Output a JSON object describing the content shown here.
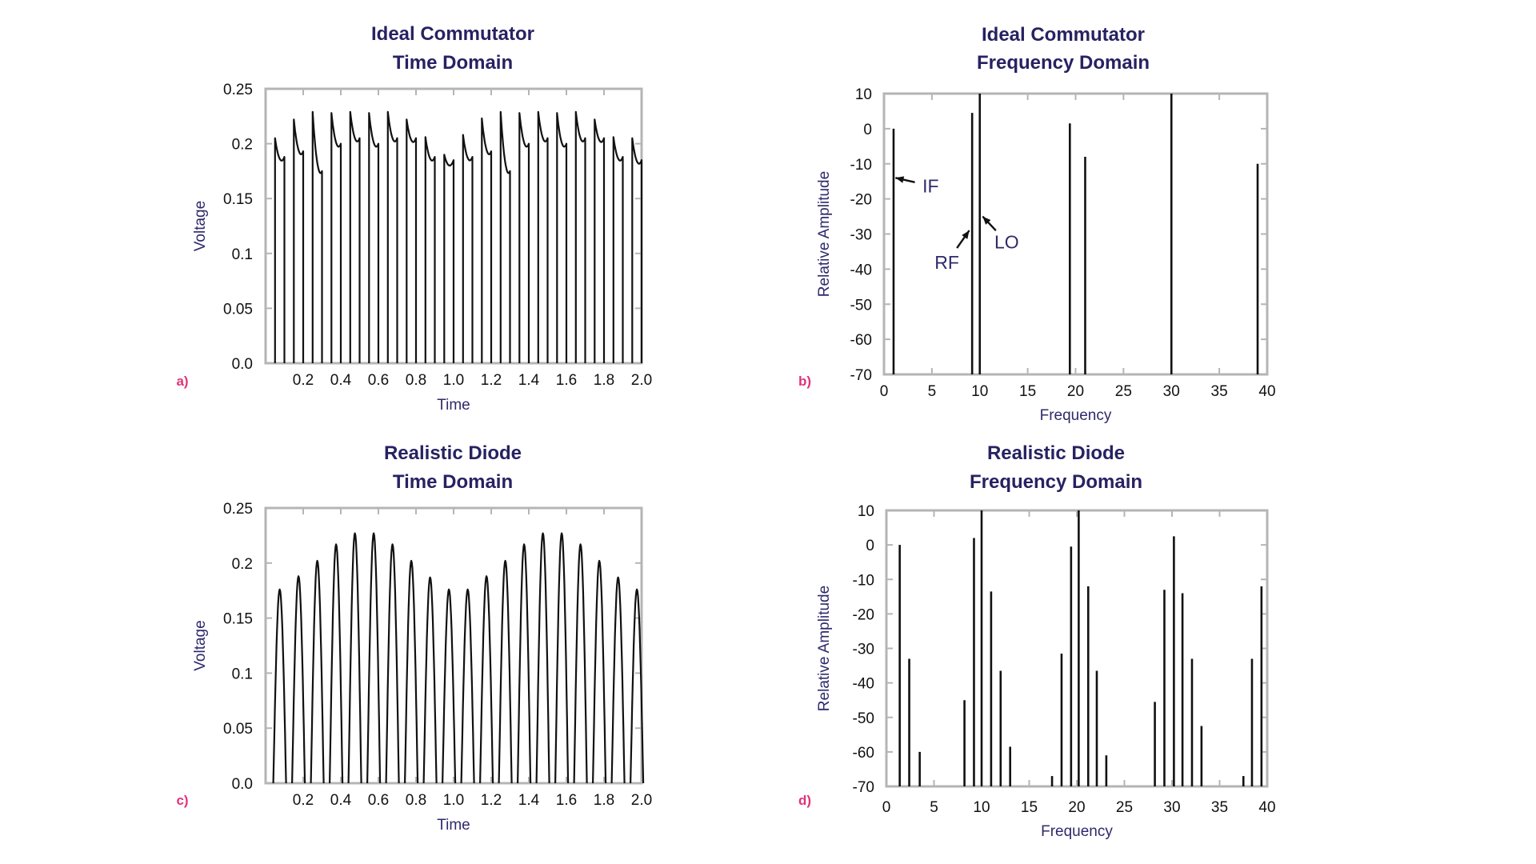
{
  "chart_data": [
    {
      "id": "a",
      "panel_letter": "a)",
      "type": "line",
      "title_lines": [
        "Ideal Commutator",
        "Time Domain"
      ],
      "xlabel": "Time",
      "ylabel": "Voltage",
      "xlim": [
        0,
        2.0
      ],
      "ylim": [
        0,
        0.25
      ],
      "xticks": [
        0.2,
        0.4,
        0.6,
        0.8,
        1.0,
        1.2,
        1.4,
        1.6,
        1.8,
        2.0
      ],
      "xtick_labels": [
        "0.2",
        "0.4",
        "0.6",
        "0.8",
        "1.0",
        "1.2",
        "1.4",
        "1.6",
        "1.8",
        "2.0"
      ],
      "yticks": [
        0,
        0.05,
        0.1,
        0.15,
        0.2,
        0.25
      ],
      "ytick_labels": [
        "0.0",
        "0.05",
        "0.1",
        "0.15",
        "0.2",
        "0.25"
      ],
      "grid": false,
      "pulse_period": 0.1,
      "pulse_starts": [
        0.05,
        0.15,
        0.25,
        0.35,
        0.45,
        0.55,
        0.65,
        0.75,
        0.85,
        0.95,
        1.05,
        1.15,
        1.25,
        1.35,
        1.45,
        1.55,
        1.65,
        1.75,
        1.85,
        1.95
      ],
      "pulse_duty": 0.5,
      "series": [
        {
          "values": [
            0.205,
            0.222,
            0.229,
            0.228,
            0.229,
            0.228,
            0.229,
            0.222,
            0.206,
            0.19,
            0.208,
            0.223,
            0.229,
            0.228,
            0.229,
            0.228,
            0.229,
            0.222,
            0.206,
            0.205
          ]
        },
        {
          "values": [
            0.188,
            0.193,
            0.175,
            0.2,
            0.205,
            0.2,
            0.205,
            0.205,
            0.188,
            0.185,
            0.188,
            0.193,
            0.175,
            0.2,
            0.205,
            0.2,
            0.205,
            0.205,
            0.188,
            0.185
          ]
        }
      ]
    },
    {
      "id": "b",
      "panel_letter": "b)",
      "type": "bar",
      "title_lines": [
        "Ideal Commutator",
        "Frequency Domain"
      ],
      "xlabel": "Frequency",
      "ylabel": "Relative Amplitude",
      "xlim": [
        0,
        40
      ],
      "ylim": [
        -70,
        10
      ],
      "xticks": [
        0,
        5,
        10,
        15,
        20,
        25,
        30,
        35,
        40
      ],
      "xtick_labels": [
        "0",
        "5",
        "10",
        "15",
        "20",
        "25",
        "30",
        "35",
        "40"
      ],
      "yticks": [
        10,
        0,
        -10,
        -20,
        -30,
        -40,
        -50,
        -60,
        -70
      ],
      "ytick_labels": [
        "10",
        "0",
        "-10",
        "-20",
        "-30",
        "-40",
        "-50",
        "-60",
        "-70"
      ],
      "grid": false,
      "x": [
        1,
        9.2,
        10,
        19.4,
        21,
        30,
        39
      ],
      "values": [
        0,
        4.5,
        10,
        1.5,
        -8,
        10,
        -10
      ],
      "annotations": [
        {
          "text": "IF",
          "target_x": 1.2,
          "target_y": -14
        },
        {
          "text": "RF",
          "target_x": 8.9,
          "target_y": -29
        },
        {
          "text": "LO",
          "target_x": 10.3,
          "target_y": -25
        }
      ]
    },
    {
      "id": "c",
      "panel_letter": "c)",
      "type": "line",
      "title_lines": [
        "Realistic Diode",
        "Time Domain"
      ],
      "xlabel": "Time",
      "ylabel": "Voltage",
      "xlim": [
        0,
        2.0
      ],
      "ylim": [
        0,
        0.25
      ],
      "xticks": [
        0.2,
        0.4,
        0.6,
        0.8,
        1.0,
        1.2,
        1.4,
        1.6,
        1.8,
        2.0
      ],
      "xtick_labels": [
        "0.2",
        "0.4",
        "0.6",
        "0.8",
        "1.0",
        "1.2",
        "1.4",
        "1.6",
        "1.8",
        "2.0"
      ],
      "yticks": [
        0,
        0.05,
        0.1,
        0.15,
        0.2,
        0.25
      ],
      "ytick_labels": [
        "0.0",
        "0.05",
        "0.1",
        "0.15",
        "0.2",
        "0.25"
      ],
      "grid": false,
      "peak_times": [
        0.075,
        0.175,
        0.275,
        0.375,
        0.475,
        0.575,
        0.675,
        0.775,
        0.875,
        0.975,
        1.075,
        1.175,
        1.275,
        1.375,
        1.475,
        1.575,
        1.675,
        1.775,
        1.875,
        1.975
      ],
      "peak_half_width": 0.034,
      "values": [
        0.176,
        0.188,
        0.202,
        0.217,
        0.227,
        0.227,
        0.217,
        0.202,
        0.187,
        0.176,
        0.176,
        0.188,
        0.202,
        0.217,
        0.227,
        0.227,
        0.217,
        0.202,
        0.187,
        0.176
      ]
    },
    {
      "id": "d",
      "panel_letter": "d)",
      "type": "bar",
      "title_lines": [
        "Realistic Diode",
        "Frequency Domain"
      ],
      "xlabel": "Frequency",
      "ylabel": "Relative Amplitude",
      "xlim": [
        0,
        40
      ],
      "ylim": [
        -70,
        10
      ],
      "xticks": [
        0,
        5,
        10,
        15,
        20,
        25,
        30,
        35,
        40
      ],
      "xtick_labels": [
        "0",
        "5",
        "10",
        "15",
        "20",
        "25",
        "30",
        "35",
        "40"
      ],
      "yticks": [
        10,
        0,
        -10,
        -20,
        -30,
        -40,
        -50,
        -60,
        -70
      ],
      "ytick_labels": [
        "10",
        "0",
        "-10",
        "-20",
        "-30",
        "-40",
        "-50",
        "-60",
        "-70"
      ],
      "grid": false,
      "x": [
        1.4,
        2.4,
        3.5,
        8.2,
        9.2,
        10,
        11,
        12,
        13,
        17.4,
        18.4,
        19.4,
        20.2,
        21.2,
        22.1,
        23.1,
        28.2,
        29.2,
        30.2,
        31.1,
        32.1,
        33.1,
        37.5,
        38.4,
        39.4
      ],
      "values": [
        0,
        -33,
        -60,
        -45,
        2,
        10,
        -13.5,
        -36.5,
        -58.5,
        -67,
        -31.5,
        -0.5,
        10,
        -12,
        -36.5,
        -61,
        -45.5,
        -13,
        2.5,
        -14,
        -33,
        -52.5,
        -67,
        -33,
        -12
      ]
    }
  ]
}
